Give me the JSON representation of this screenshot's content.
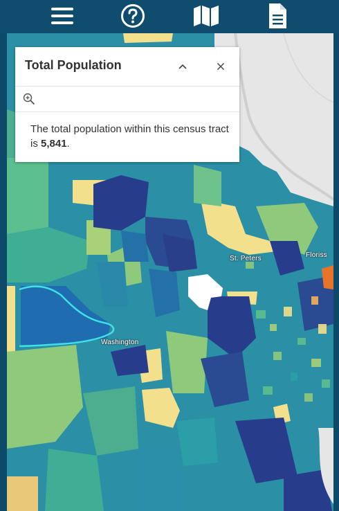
{
  "toolbar": {
    "icons": [
      "menu-icon",
      "help-icon",
      "map-icon",
      "document-icon"
    ],
    "colors": {
      "background": "#0f4c6e",
      "icon": "#ffffff"
    }
  },
  "popup": {
    "title": "Total Population",
    "body_prefix": "The total population within this census tract is ",
    "population": "5,841",
    "body_suffix": "."
  },
  "map": {
    "labels": {
      "st_peters": "St. Peters",
      "florissant": "Floriss",
      "washington": "Washington"
    },
    "legend_colors": [
      "#f2e08c",
      "#a8d179",
      "#5cbf8f",
      "#2a9fa8",
      "#2471a8",
      "#283c8c",
      "#e8742a"
    ]
  }
}
